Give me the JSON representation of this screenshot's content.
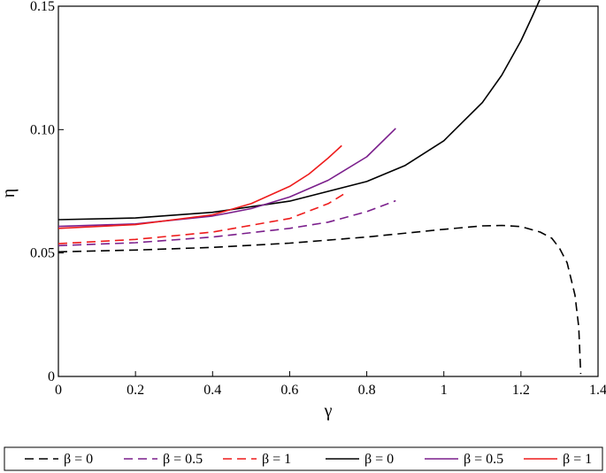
{
  "chart_data": {
    "type": "line",
    "xlabel": "γ",
    "ylabel": "η",
    "xlim": [
      0,
      1.4
    ],
    "ylim": [
      0,
      0.15
    ],
    "x_ticks": [
      {
        "value": 0,
        "label": "0"
      },
      {
        "value": 0.2,
        "label": "0.2"
      },
      {
        "value": 0.4,
        "label": "0.4"
      },
      {
        "value": 0.6,
        "label": "0.6"
      },
      {
        "value": 0.8,
        "label": "0.8"
      },
      {
        "value": 1.0,
        "label": "1"
      },
      {
        "value": 1.2,
        "label": "1.2"
      },
      {
        "value": 1.4,
        "label": "1.4"
      }
    ],
    "y_ticks": [
      {
        "value": 0,
        "label": "0"
      },
      {
        "value": 0.05,
        "label": "0.05"
      },
      {
        "value": 0.1,
        "label": "0.10"
      },
      {
        "value": 0.15,
        "label": "0.15"
      }
    ],
    "grid": false,
    "legend_position": "bottom",
    "series": [
      {
        "name": "β = 0",
        "style": "dashed",
        "color": "#000000",
        "x": [
          0,
          0.2,
          0.4,
          0.6,
          0.8,
          1.0,
          1.1,
          1.15,
          1.2,
          1.25,
          1.28,
          1.3,
          1.32,
          1.34,
          1.35,
          1.355
        ],
        "y": [
          0.0505,
          0.0512,
          0.0523,
          0.054,
          0.0565,
          0.0596,
          0.061,
          0.0612,
          0.0607,
          0.0585,
          0.056,
          0.052,
          0.046,
          0.033,
          0.02,
          0.001
        ]
      },
      {
        "name": "β = 0.5",
        "style": "dashed",
        "color": "#7b1f8c",
        "x": [
          0,
          0.2,
          0.4,
          0.6,
          0.7,
          0.8,
          0.875
        ],
        "y": [
          0.053,
          0.0542,
          0.0565,
          0.06,
          0.0625,
          0.0668,
          0.0712
        ]
      },
      {
        "name": "β = 1",
        "style": "dashed",
        "color": "#ee1c1c",
        "x": [
          0,
          0.2,
          0.4,
          0.6,
          0.7,
          0.74
        ],
        "y": [
          0.0538,
          0.0555,
          0.0585,
          0.064,
          0.07,
          0.0738
        ]
      },
      {
        "name": "β = 0",
        "style": "solid",
        "color": "#000000",
        "x": [
          0,
          0.2,
          0.4,
          0.6,
          0.8,
          0.9,
          1.0,
          1.1,
          1.15,
          1.2,
          1.23,
          1.25
        ],
        "y": [
          0.0635,
          0.0642,
          0.0665,
          0.071,
          0.079,
          0.0855,
          0.0955,
          0.111,
          0.122,
          0.136,
          0.146,
          0.153
        ]
      },
      {
        "name": "β = 0.5",
        "style": "solid",
        "color": "#7b1f8c",
        "x": [
          0,
          0.2,
          0.4,
          0.5,
          0.6,
          0.7,
          0.8,
          0.875
        ],
        "y": [
          0.0608,
          0.0618,
          0.065,
          0.068,
          0.0727,
          0.0795,
          0.089,
          0.1005
        ]
      },
      {
        "name": "β = 1",
        "style": "solid",
        "color": "#ee1c1c",
        "x": [
          0,
          0.2,
          0.4,
          0.5,
          0.6,
          0.65,
          0.7,
          0.735
        ],
        "y": [
          0.06,
          0.0615,
          0.0655,
          0.07,
          0.077,
          0.082,
          0.0885,
          0.0935
        ]
      }
    ]
  }
}
